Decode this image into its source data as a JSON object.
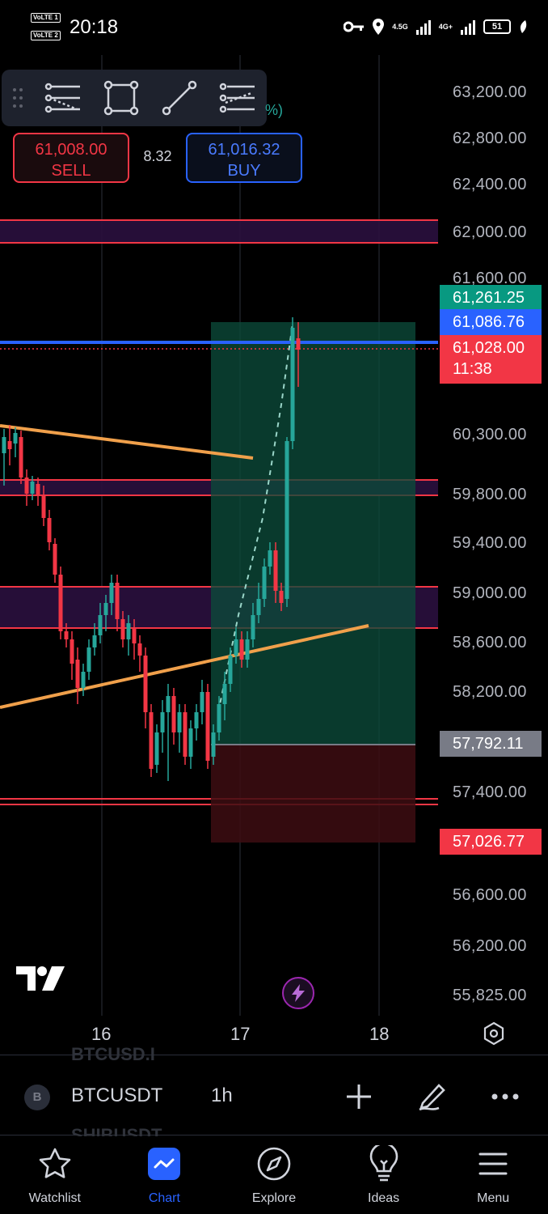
{
  "status_bar": {
    "volte_1": "VoLTE 1",
    "volte_2": "VoLTE 2",
    "time": "20:18",
    "network_1": "4.5G",
    "network_2": "4G+",
    "battery": "51"
  },
  "toolbar": {
    "percent_fragment": "%)"
  },
  "trade": {
    "sell_price": "61,008.00",
    "sell_label": "SELL",
    "spread": "8.32",
    "buy_price": "61,016.32",
    "buy_label": "BUY"
  },
  "price_axis": {
    "labels": [
      "63,200.00",
      "62,800.00",
      "62,400.00",
      "62,000.00",
      "61,600.00",
      "60,300.00",
      "59,800.00",
      "59,400.00",
      "59,000.00",
      "58,600.00",
      "58,200.00",
      "57,400.00",
      "56,600.00",
      "56,200.00",
      "55,825.00"
    ],
    "tags": {
      "high": "61,261.25",
      "bid": "61,086.76",
      "last": "61,028.00",
      "countdown": "11:38",
      "entry": "57,792.11",
      "stop": "57,026.77"
    }
  },
  "time_axis": [
    "16",
    "17",
    "18"
  ],
  "colors": {
    "up": "#26a69a",
    "down": "#f23645",
    "trendline": "#f0a04b",
    "accent": "#2962ff"
  },
  "symbol_bar": {
    "badge": "B",
    "symbol": "BTCUSDT",
    "interval": "1h",
    "ghost_above": "BTCUSD.I",
    "ghost_below": "SHIBUSDT",
    "add_icon": "plus-icon",
    "draw_icon": "pencil-icon",
    "more_icon": "more-icon"
  },
  "bottom_nav": [
    {
      "label": "Watchlist",
      "icon": "star-icon"
    },
    {
      "label": "Chart",
      "icon": "chart-icon",
      "active": true
    },
    {
      "label": "Explore",
      "icon": "compass-icon"
    },
    {
      "label": "Ideas",
      "icon": "lightbulb-icon"
    },
    {
      "label": "Menu",
      "icon": "menu-icon"
    }
  ]
}
